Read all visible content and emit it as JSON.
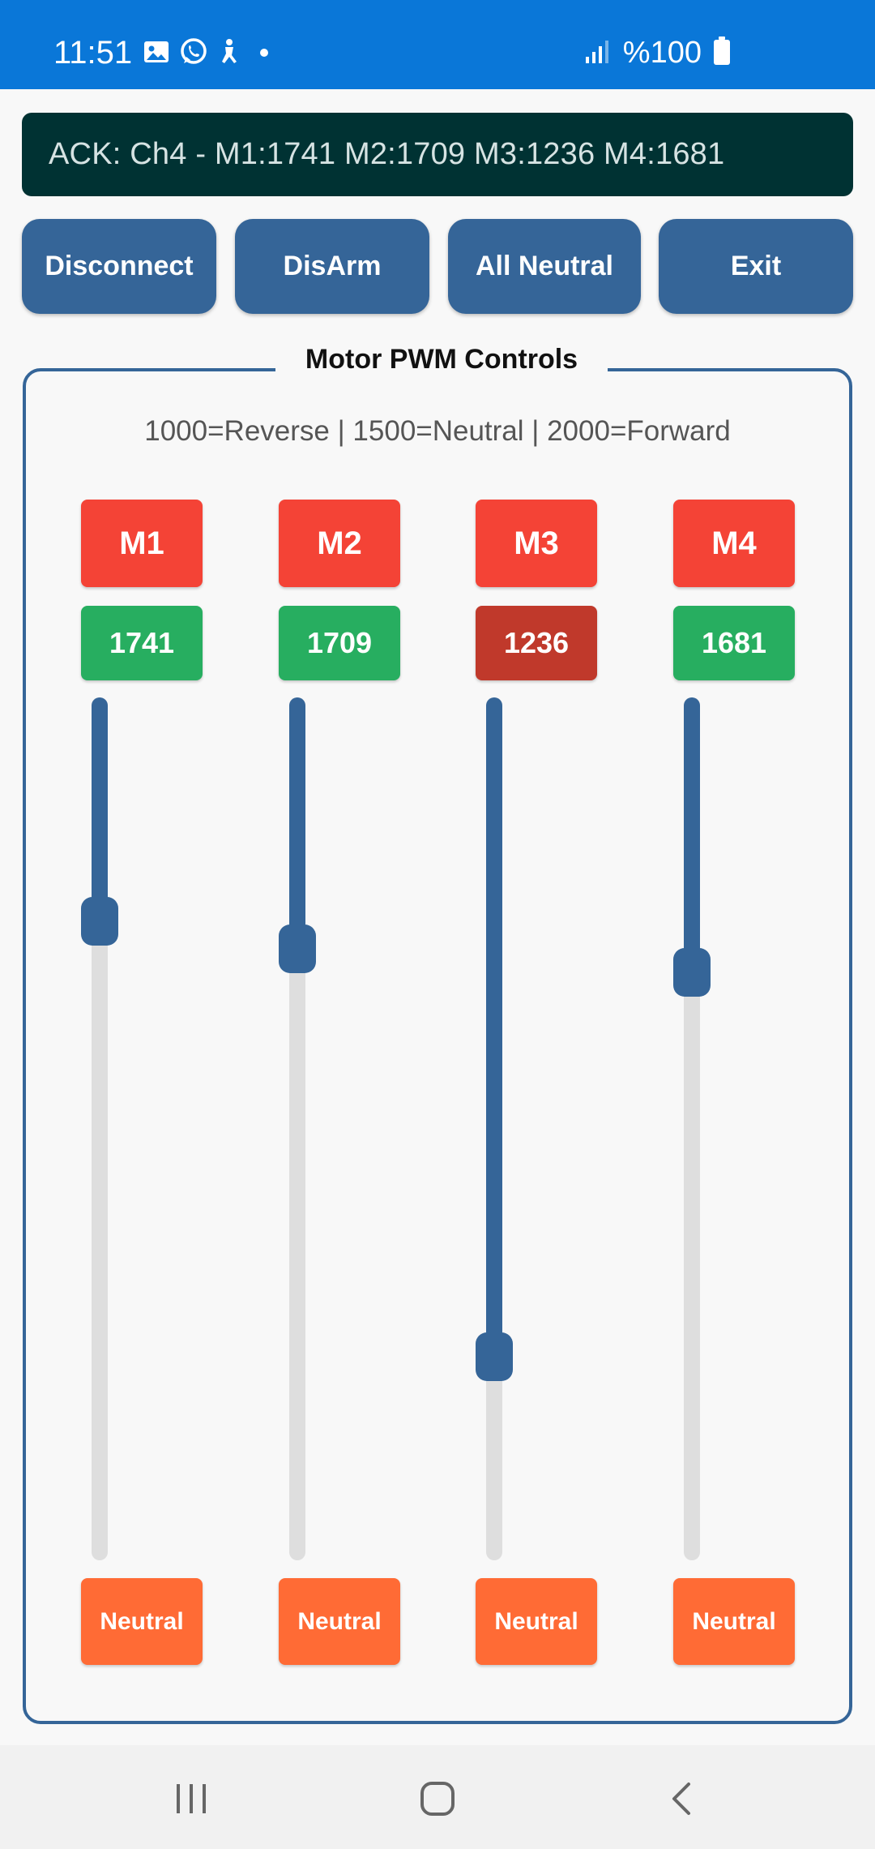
{
  "status_bar": {
    "time": "11:51",
    "battery_text": "%100",
    "icons_left": [
      "gallery-icon",
      "whatsapp-icon",
      "accessibility-icon",
      "dot-icon"
    ],
    "icons_right": [
      "signal-icon",
      "battery-icon"
    ],
    "background": "#0a77d8"
  },
  "ack_banner": {
    "text": "ACK: Ch4 - M1:1741 M2:1709 M3:1236 M4:1681",
    "background": "#003233"
  },
  "toolbar": {
    "disconnect_label": "Disconnect",
    "disarm_label": "DisArm",
    "all_neutral_label": "All Neutral",
    "exit_label": "Exit",
    "button_color": "#356598"
  },
  "controls": {
    "title": "Motor PWM Controls",
    "legend": "1000=Reverse | 1500=Neutral | 2000=Forward",
    "range_min": 1000,
    "range_max": 2000,
    "motors": [
      {
        "label": "M1",
        "value": "1741",
        "value_color": "#27ae60",
        "neutral_label": "Neutral"
      },
      {
        "label": "M2",
        "value": "1709",
        "value_color": "#27ae60",
        "neutral_label": "Neutral"
      },
      {
        "label": "M3",
        "value": "1236",
        "value_color": "#c0392b",
        "neutral_label": "Neutral"
      },
      {
        "label": "M4",
        "value": "1681",
        "value_color": "#27ae60",
        "neutral_label": "Neutral"
      }
    ],
    "label_color": "#f44336",
    "neutral_color": "#ff6b35"
  },
  "nav_bar": {
    "buttons": [
      "recents-icon",
      "home-icon",
      "back-icon"
    ]
  }
}
